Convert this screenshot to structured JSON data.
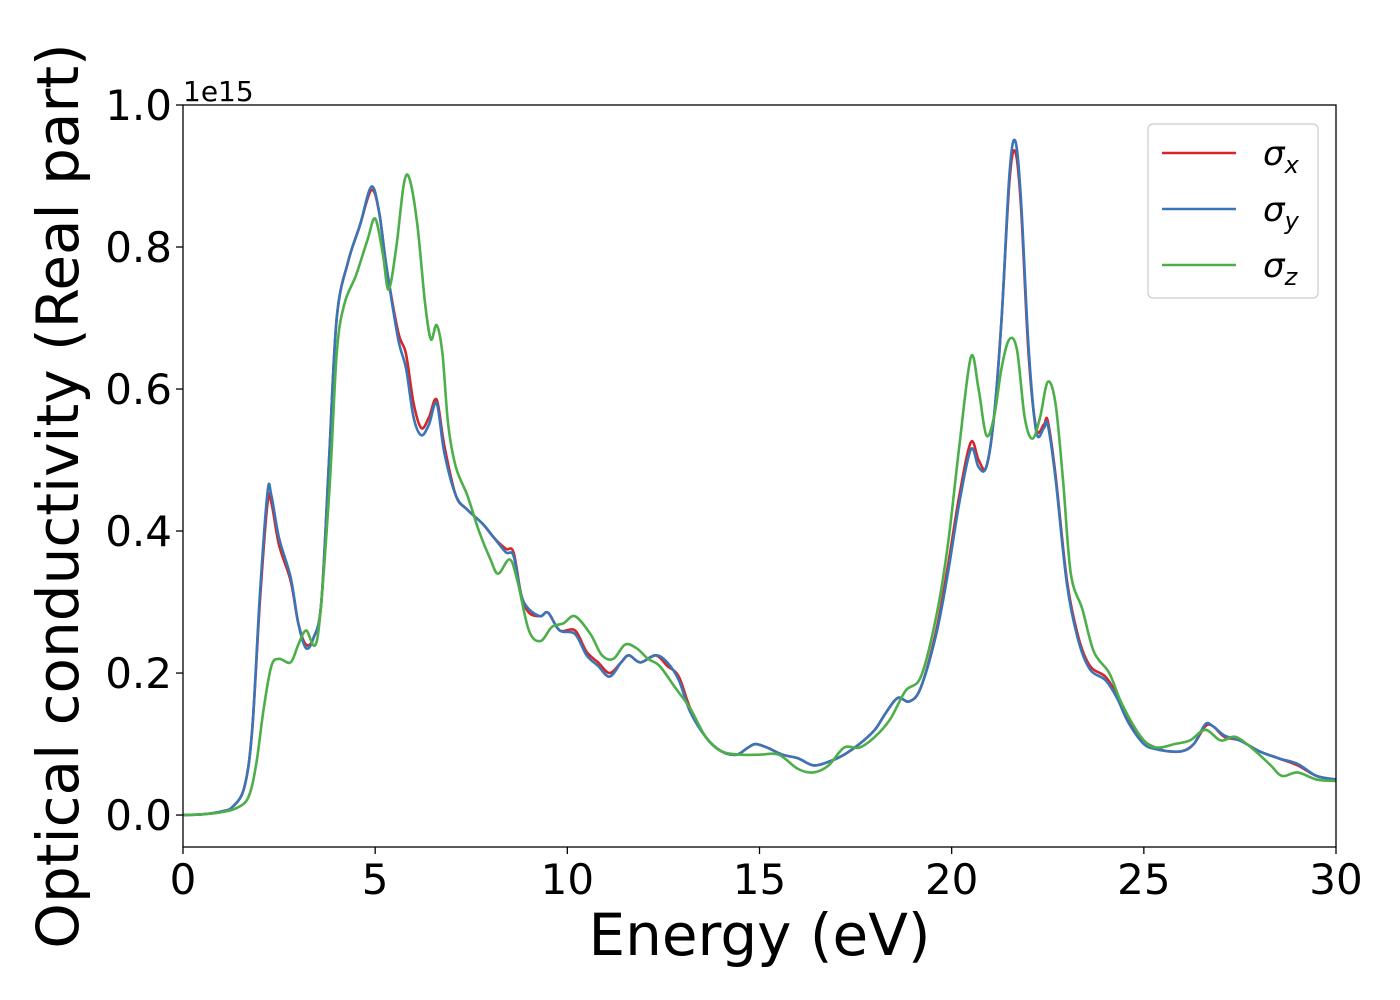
{
  "chart_data": {
    "type": "line",
    "xlabel": "Energy (eV)",
    "ylabel": "Optical conductivity (Real part)",
    "y_offset_label": "1e15",
    "xlim": [
      0,
      30
    ],
    "ylim": [
      -0.045,
      1.0
    ],
    "x_ticks": [
      0,
      5,
      10,
      15,
      20,
      25,
      30
    ],
    "x_tick_labels": [
      "0",
      "5",
      "10",
      "15",
      "20",
      "25",
      "30"
    ],
    "y_ticks": [
      0.0,
      0.2,
      0.4,
      0.6,
      0.8,
      1.0
    ],
    "y_tick_labels": [
      "0.0",
      "0.2",
      "0.4",
      "0.6",
      "0.8",
      "1.0"
    ],
    "grid": false,
    "legend_position": "top-right",
    "series": [
      {
        "name": "σx",
        "legend_base": "σ",
        "legend_sub": "x",
        "color": "#d62728",
        "points": [
          [
            0,
            0
          ],
          [
            0.5,
            0.001
          ],
          [
            1.0,
            0.005
          ],
          [
            1.3,
            0.012
          ],
          [
            1.6,
            0.04
          ],
          [
            1.8,
            0.12
          ],
          [
            2.0,
            0.3
          ],
          [
            2.2,
            0.44
          ],
          [
            2.3,
            0.44
          ],
          [
            2.5,
            0.38
          ],
          [
            2.8,
            0.33
          ],
          [
            3.0,
            0.27
          ],
          [
            3.2,
            0.24
          ],
          [
            3.4,
            0.25
          ],
          [
            3.6,
            0.3
          ],
          [
            3.8,
            0.5
          ],
          [
            4.0,
            0.7
          ],
          [
            4.3,
            0.78
          ],
          [
            4.6,
            0.83
          ],
          [
            4.9,
            0.88
          ],
          [
            5.1,
            0.85
          ],
          [
            5.3,
            0.77
          ],
          [
            5.6,
            0.68
          ],
          [
            5.8,
            0.65
          ],
          [
            6.0,
            0.58
          ],
          [
            6.2,
            0.545
          ],
          [
            6.4,
            0.56
          ],
          [
            6.6,
            0.585
          ],
          [
            6.8,
            0.52
          ],
          [
            7.1,
            0.45
          ],
          [
            7.4,
            0.43
          ],
          [
            7.8,
            0.41
          ],
          [
            8.1,
            0.39
          ],
          [
            8.4,
            0.375
          ],
          [
            8.6,
            0.37
          ],
          [
            8.8,
            0.31
          ],
          [
            9.0,
            0.285
          ],
          [
            9.3,
            0.28
          ],
          [
            9.5,
            0.285
          ],
          [
            9.8,
            0.26
          ],
          [
            10.2,
            0.26
          ],
          [
            10.5,
            0.23
          ],
          [
            10.8,
            0.215
          ],
          [
            11.1,
            0.2
          ],
          [
            11.4,
            0.215
          ],
          [
            11.6,
            0.225
          ],
          [
            11.9,
            0.215
          ],
          [
            12.3,
            0.225
          ],
          [
            12.6,
            0.21
          ],
          [
            12.9,
            0.195
          ],
          [
            13.2,
            0.15
          ],
          [
            13.6,
            0.11
          ],
          [
            14.0,
            0.09
          ],
          [
            14.4,
            0.085
          ],
          [
            14.7,
            0.095
          ],
          [
            14.9,
            0.1
          ],
          [
            15.2,
            0.095
          ],
          [
            15.6,
            0.085
          ],
          [
            16.0,
            0.08
          ],
          [
            16.4,
            0.07
          ],
          [
            16.8,
            0.075
          ],
          [
            17.2,
            0.085
          ],
          [
            17.6,
            0.1
          ],
          [
            18.0,
            0.12
          ],
          [
            18.3,
            0.145
          ],
          [
            18.6,
            0.165
          ],
          [
            18.9,
            0.16
          ],
          [
            19.2,
            0.18
          ],
          [
            19.6,
            0.26
          ],
          [
            19.9,
            0.35
          ],
          [
            20.2,
            0.45
          ],
          [
            20.5,
            0.525
          ],
          [
            20.7,
            0.5
          ],
          [
            20.9,
            0.49
          ],
          [
            21.1,
            0.56
          ],
          [
            21.3,
            0.7
          ],
          [
            21.5,
            0.89
          ],
          [
            21.65,
            0.935
          ],
          [
            21.8,
            0.86
          ],
          [
            22.0,
            0.65
          ],
          [
            22.2,
            0.545
          ],
          [
            22.4,
            0.55
          ],
          [
            22.5,
            0.555
          ],
          [
            22.7,
            0.48
          ],
          [
            23.0,
            0.33
          ],
          [
            23.3,
            0.25
          ],
          [
            23.6,
            0.21
          ],
          [
            24.0,
            0.195
          ],
          [
            24.3,
            0.17
          ],
          [
            24.6,
            0.135
          ],
          [
            25.0,
            0.105
          ],
          [
            25.3,
            0.095
          ],
          [
            25.6,
            0.09
          ],
          [
            26.0,
            0.09
          ],
          [
            26.3,
            0.1
          ],
          [
            26.6,
            0.125
          ],
          [
            26.8,
            0.125
          ],
          [
            27.1,
            0.11
          ],
          [
            27.5,
            0.105
          ],
          [
            28.0,
            0.09
          ],
          [
            28.5,
            0.08
          ],
          [
            29.0,
            0.07
          ],
          [
            29.5,
            0.055
          ],
          [
            30,
            0.05
          ]
        ]
      },
      {
        "name": "σy",
        "legend_base": "σ",
        "legend_sub": "y",
        "color": "#3a76b7",
        "points": [
          [
            0,
            0
          ],
          [
            0.5,
            0.001
          ],
          [
            1.0,
            0.005
          ],
          [
            1.3,
            0.012
          ],
          [
            1.6,
            0.04
          ],
          [
            1.8,
            0.12
          ],
          [
            2.0,
            0.31
          ],
          [
            2.2,
            0.455
          ],
          [
            2.3,
            0.45
          ],
          [
            2.5,
            0.39
          ],
          [
            2.8,
            0.335
          ],
          [
            3.0,
            0.27
          ],
          [
            3.2,
            0.235
          ],
          [
            3.4,
            0.25
          ],
          [
            3.6,
            0.3
          ],
          [
            3.8,
            0.5
          ],
          [
            4.0,
            0.7
          ],
          [
            4.3,
            0.78
          ],
          [
            4.6,
            0.83
          ],
          [
            4.9,
            0.885
          ],
          [
            5.1,
            0.85
          ],
          [
            5.3,
            0.77
          ],
          [
            5.6,
            0.67
          ],
          [
            5.8,
            0.63
          ],
          [
            6.0,
            0.56
          ],
          [
            6.2,
            0.535
          ],
          [
            6.4,
            0.55
          ],
          [
            6.6,
            0.58
          ],
          [
            6.8,
            0.51
          ],
          [
            7.1,
            0.45
          ],
          [
            7.4,
            0.43
          ],
          [
            7.8,
            0.41
          ],
          [
            8.1,
            0.39
          ],
          [
            8.4,
            0.37
          ],
          [
            8.6,
            0.365
          ],
          [
            8.8,
            0.31
          ],
          [
            9.0,
            0.29
          ],
          [
            9.3,
            0.28
          ],
          [
            9.5,
            0.285
          ],
          [
            9.8,
            0.26
          ],
          [
            10.2,
            0.255
          ],
          [
            10.5,
            0.225
          ],
          [
            10.8,
            0.21
          ],
          [
            11.1,
            0.195
          ],
          [
            11.4,
            0.215
          ],
          [
            11.6,
            0.225
          ],
          [
            11.9,
            0.215
          ],
          [
            12.3,
            0.225
          ],
          [
            12.6,
            0.215
          ],
          [
            12.9,
            0.19
          ],
          [
            13.2,
            0.145
          ],
          [
            13.6,
            0.11
          ],
          [
            14.0,
            0.09
          ],
          [
            14.4,
            0.085
          ],
          [
            14.7,
            0.095
          ],
          [
            14.9,
            0.1
          ],
          [
            15.2,
            0.095
          ],
          [
            15.6,
            0.085
          ],
          [
            16.0,
            0.08
          ],
          [
            16.4,
            0.07
          ],
          [
            16.8,
            0.075
          ],
          [
            17.2,
            0.085
          ],
          [
            17.6,
            0.1
          ],
          [
            18.0,
            0.12
          ],
          [
            18.3,
            0.145
          ],
          [
            18.6,
            0.165
          ],
          [
            18.9,
            0.16
          ],
          [
            19.2,
            0.18
          ],
          [
            19.6,
            0.255
          ],
          [
            19.9,
            0.34
          ],
          [
            20.2,
            0.44
          ],
          [
            20.5,
            0.515
          ],
          [
            20.7,
            0.49
          ],
          [
            20.9,
            0.49
          ],
          [
            21.1,
            0.56
          ],
          [
            21.3,
            0.7
          ],
          [
            21.5,
            0.9
          ],
          [
            21.65,
            0.95
          ],
          [
            21.8,
            0.87
          ],
          [
            22.0,
            0.66
          ],
          [
            22.2,
            0.54
          ],
          [
            22.4,
            0.545
          ],
          [
            22.5,
            0.55
          ],
          [
            22.7,
            0.475
          ],
          [
            23.0,
            0.325
          ],
          [
            23.3,
            0.245
          ],
          [
            23.6,
            0.205
          ],
          [
            24.0,
            0.19
          ],
          [
            24.3,
            0.165
          ],
          [
            24.6,
            0.13
          ],
          [
            25.0,
            0.1
          ],
          [
            25.3,
            0.093
          ],
          [
            25.6,
            0.09
          ],
          [
            26.0,
            0.09
          ],
          [
            26.3,
            0.1
          ],
          [
            26.6,
            0.128
          ],
          [
            26.8,
            0.125
          ],
          [
            27.1,
            0.112
          ],
          [
            27.5,
            0.105
          ],
          [
            28.0,
            0.09
          ],
          [
            28.5,
            0.08
          ],
          [
            29.0,
            0.072
          ],
          [
            29.5,
            0.055
          ],
          [
            30,
            0.05
          ]
        ]
      },
      {
        "name": "σz",
        "legend_base": "σ",
        "legend_sub": "z",
        "color": "#4daf4a",
        "points": [
          [
            0,
            0
          ],
          [
            0.5,
            0.001
          ],
          [
            1.0,
            0.004
          ],
          [
            1.4,
            0.01
          ],
          [
            1.7,
            0.025
          ],
          [
            1.9,
            0.07
          ],
          [
            2.1,
            0.15
          ],
          [
            2.3,
            0.21
          ],
          [
            2.5,
            0.22
          ],
          [
            2.8,
            0.215
          ],
          [
            3.0,
            0.24
          ],
          [
            3.2,
            0.26
          ],
          [
            3.5,
            0.25
          ],
          [
            3.8,
            0.45
          ],
          [
            4.0,
            0.65
          ],
          [
            4.2,
            0.72
          ],
          [
            4.5,
            0.76
          ],
          [
            4.8,
            0.81
          ],
          [
            5.0,
            0.84
          ],
          [
            5.2,
            0.79
          ],
          [
            5.35,
            0.74
          ],
          [
            5.55,
            0.8
          ],
          [
            5.75,
            0.89
          ],
          [
            5.9,
            0.895
          ],
          [
            6.1,
            0.83
          ],
          [
            6.3,
            0.72
          ],
          [
            6.45,
            0.67
          ],
          [
            6.6,
            0.69
          ],
          [
            6.75,
            0.65
          ],
          [
            6.9,
            0.55
          ],
          [
            7.1,
            0.49
          ],
          [
            7.4,
            0.45
          ],
          [
            7.7,
            0.4
          ],
          [
            8.0,
            0.36
          ],
          [
            8.2,
            0.34
          ],
          [
            8.5,
            0.36
          ],
          [
            8.7,
            0.33
          ],
          [
            9.0,
            0.26
          ],
          [
            9.3,
            0.245
          ],
          [
            9.6,
            0.265
          ],
          [
            9.9,
            0.27
          ],
          [
            10.2,
            0.28
          ],
          [
            10.6,
            0.255
          ],
          [
            10.9,
            0.225
          ],
          [
            11.2,
            0.22
          ],
          [
            11.5,
            0.24
          ],
          [
            11.8,
            0.235
          ],
          [
            12.1,
            0.22
          ],
          [
            12.4,
            0.21
          ],
          [
            12.8,
            0.18
          ],
          [
            13.2,
            0.15
          ],
          [
            13.6,
            0.11
          ],
          [
            14.0,
            0.09
          ],
          [
            14.5,
            0.085
          ],
          [
            15.0,
            0.085
          ],
          [
            15.5,
            0.085
          ],
          [
            16.0,
            0.065
          ],
          [
            16.4,
            0.06
          ],
          [
            16.8,
            0.07
          ],
          [
            17.2,
            0.095
          ],
          [
            17.6,
            0.095
          ],
          [
            18.0,
            0.11
          ],
          [
            18.4,
            0.135
          ],
          [
            18.8,
            0.175
          ],
          [
            19.2,
            0.195
          ],
          [
            19.6,
            0.28
          ],
          [
            19.9,
            0.38
          ],
          [
            20.2,
            0.52
          ],
          [
            20.5,
            0.645
          ],
          [
            20.7,
            0.6
          ],
          [
            20.9,
            0.535
          ],
          [
            21.1,
            0.56
          ],
          [
            21.3,
            0.63
          ],
          [
            21.5,
            0.67
          ],
          [
            21.7,
            0.655
          ],
          [
            21.9,
            0.56
          ],
          [
            22.1,
            0.53
          ],
          [
            22.3,
            0.56
          ],
          [
            22.5,
            0.61
          ],
          [
            22.7,
            0.58
          ],
          [
            22.9,
            0.47
          ],
          [
            23.1,
            0.34
          ],
          [
            23.4,
            0.29
          ],
          [
            23.7,
            0.23
          ],
          [
            24.1,
            0.2
          ],
          [
            24.4,
            0.16
          ],
          [
            24.8,
            0.12
          ],
          [
            25.1,
            0.1
          ],
          [
            25.4,
            0.095
          ],
          [
            25.8,
            0.1
          ],
          [
            26.2,
            0.105
          ],
          [
            26.6,
            0.12
          ],
          [
            27.0,
            0.105
          ],
          [
            27.4,
            0.11
          ],
          [
            27.9,
            0.09
          ],
          [
            28.3,
            0.07
          ],
          [
            28.6,
            0.055
          ],
          [
            29.0,
            0.06
          ],
          [
            29.5,
            0.05
          ],
          [
            30,
            0.048
          ]
        ]
      }
    ]
  }
}
